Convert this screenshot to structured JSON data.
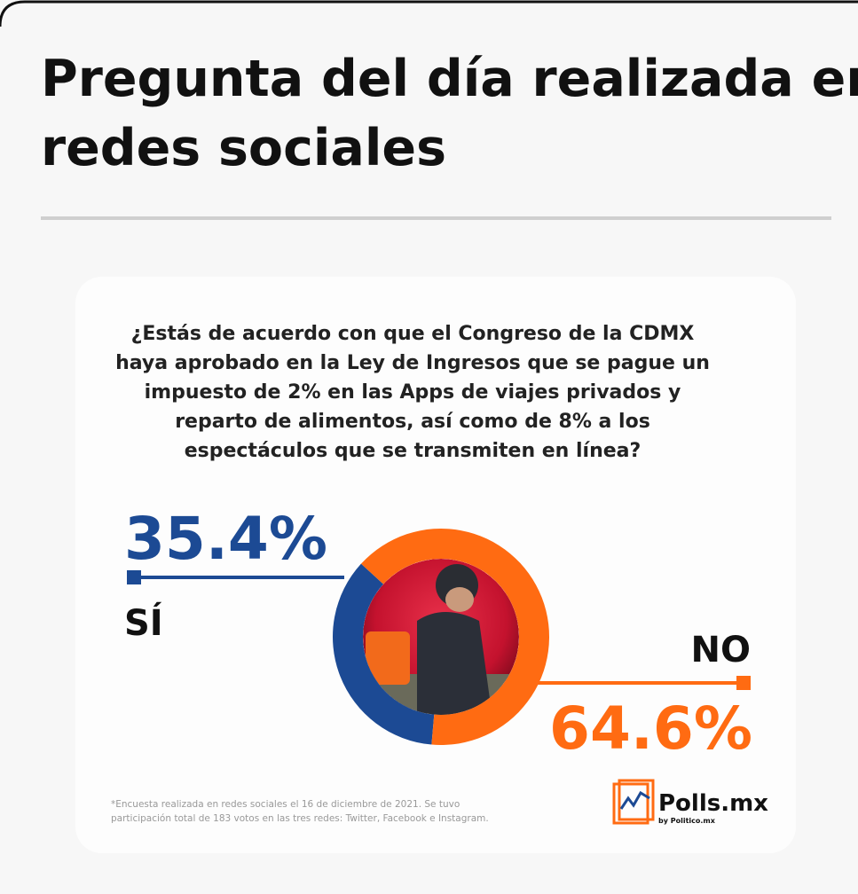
{
  "header": {
    "title": [
      "Pregunta del día realizada en",
      "redes sociales"
    ]
  },
  "chart_data": {
    "type": "donut",
    "title": [
      "¿Estás de acuerdo con que el Congreso de la CDMX",
      "haya aprobado en la Ley de Ingresos que se pague un",
      "impuesto de 2% en las Apps de viajes privados y",
      "reparto de alimentos, así como de 8% a los",
      "espectáculos que se transmiten en línea?"
    ],
    "categories": [
      "SÍ",
      "NO"
    ],
    "values": [
      35.4,
      64.6
    ],
    "value_labels": [
      "35.4%",
      "64.6%"
    ],
    "colors": [
      "#1c4a94",
      "#ff6b12"
    ],
    "footnote": [
      "*Encuesta realizada en redes sociales el 16 de diciembre de 2021. Se tuvo",
      "participación total de 183 votos en las tres redes: Twitter, Facebook e Instagram."
    ],
    "brand": {
      "name": "Polls.mx",
      "byline": "by Politico.mx"
    }
  }
}
